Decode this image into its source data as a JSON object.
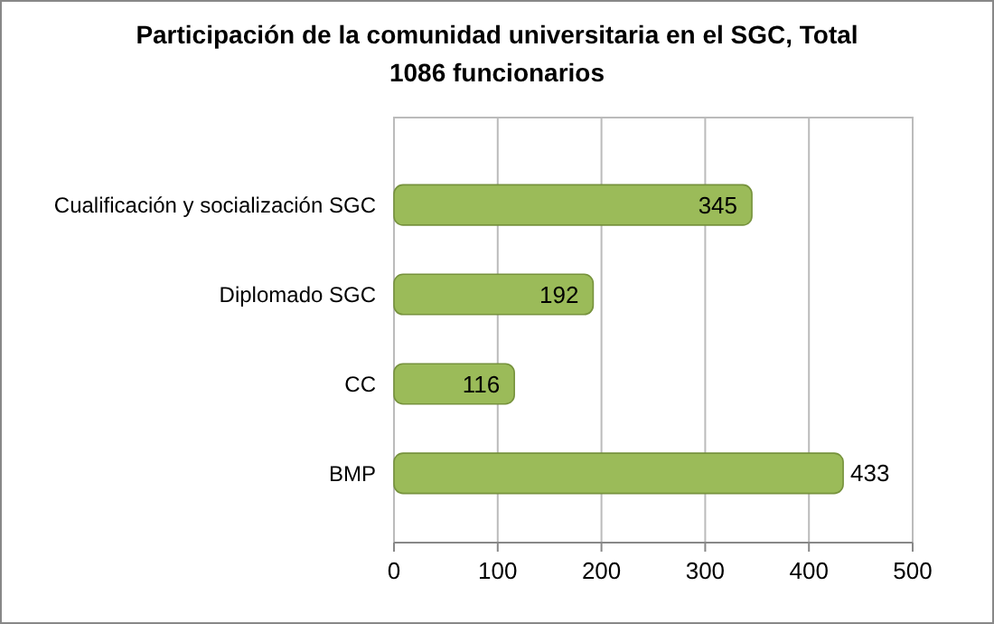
{
  "chart_data": {
    "type": "bar",
    "orientation": "horizontal",
    "title": "Participación de la comunidad universitaria en el SGC, Total\n1086 funcionarios",
    "categories": [
      "Cualificación y socialización SGC",
      "Diplomado SGC",
      "CC",
      "BMP"
    ],
    "values": [
      345,
      192,
      116,
      433
    ],
    "color": "#9bbb59",
    "data_labels": true,
    "xlim": [
      0,
      500
    ],
    "xticks": [
      0,
      100,
      200,
      300,
      400,
      500
    ],
    "grid": "x"
  }
}
